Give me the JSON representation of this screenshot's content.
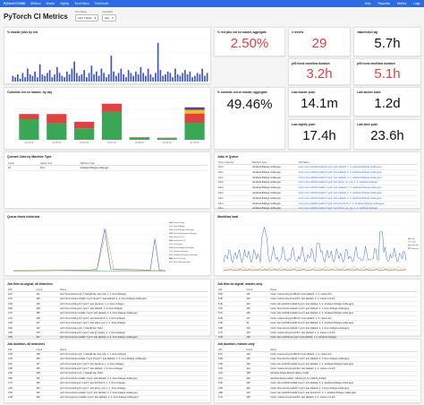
{
  "topbar": {
    "nav": [
      "PyTorch CI HUD",
      "Minihud",
      "Master",
      "Nightly",
      "TorchVision",
      "TorchAudio"
    ],
    "right": [
      "Help",
      "Requests",
      "Metrics",
      "Login"
    ]
  },
  "header": {
    "title": "PyTorch CI Metrics",
    "time_label": "Time Range",
    "time_value": "Last 7 Days",
    "granularity_label": "Granularity",
    "granularity_value": "day"
  },
  "stats": {
    "red_jobs": {
      "title": "% red jobs not on master, aggregate",
      "value": "2.50%"
    },
    "reverts": {
      "title": "# reverts",
      "value": "29"
    },
    "viable_strict_lag": {
      "title": "viable/strict lag",
      "value": "5.7h"
    },
    "p50_trunk": {
      "title": "p50 trunk workflow duration",
      "value": "3.2h"
    },
    "p90_trunk": {
      "title": "p90 trunk workflow duration",
      "value": "5.1h"
    },
    "commits_red": {
      "title": "% commits red on master, aggregate",
      "value": "49.46%"
    },
    "last_master_push": {
      "title": "Last master push",
      "value": "14.1m"
    },
    "last_docker_build": {
      "title": "Last docker build",
      "value": "1.2d"
    },
    "last_nightly_push": {
      "title": "Last nightly push",
      "value": "17.4h"
    },
    "last_docs_push": {
      "title": "Last docs push",
      "value": "23.6h"
    }
  },
  "charts": {
    "red_jobs_by_day": {
      "title": "% master jobs by red",
      "chart_data": {
        "type": "bar",
        "values": [
          4,
          3,
          5,
          2,
          6,
          3,
          9,
          5,
          4,
          7,
          3,
          12,
          5,
          4,
          6,
          8,
          3,
          5,
          10,
          6,
          4,
          3,
          7,
          5,
          9,
          14,
          6,
          4,
          5,
          8,
          3,
          6,
          11,
          5,
          7,
          4,
          9,
          6,
          3,
          5,
          18,
          7,
          4,
          6,
          9,
          5,
          3,
          8,
          6,
          4,
          7,
          5,
          10,
          6,
          4,
          9,
          5,
          3,
          6,
          27,
          8,
          4,
          5,
          7,
          6,
          3,
          9,
          5,
          4,
          6,
          8,
          5,
          7,
          3,
          4,
          6,
          5,
          9,
          4,
          6
        ]
      }
    },
    "commits_red": {
      "title": "Commits red on master, by day",
      "chart_data": {
        "type": "bar",
        "categories": [
          "01-24-23",
          "01-25-23",
          "01-26-23",
          "01-27-23",
          "01-28-23",
          "01-29-23",
          "01-30-23"
        ],
        "series": [
          {
            "name": "",
            "color": "#3aa757",
            "values": [
              40,
              32,
              22,
              54,
              4,
              3,
              33
            ]
          },
          {
            "name": "",
            "color": "#e04141",
            "values": [
              10,
              18,
              13,
              16,
              1,
              1,
              18
            ]
          },
          {
            "name": "",
            "color": "#f0c20a",
            "values": [
              0,
              0,
              0,
              0,
              0,
              0,
              7
            ]
          },
          {
            "name": "",
            "color": "#5b3fa8",
            "values": [
              0,
              0,
              0,
              0,
              0,
              0,
              5
            ]
          }
        ]
      }
    },
    "queue_history": {
      "title": "Queue times historical",
      "legend": [
        "linux.2xlarge",
        "linux.4xlarge",
        "linux.8xlarge.nvidia.gpu",
        "linux.g5.4xlarge.nvidia.gpu",
        "macos-12-xl",
        "macos-m1-12",
        "linux.large",
        "linux.4xlarge.nvidia.gpu",
        "windows.4xlarge",
        "windows.8xlarge.nvidia.gpu",
        "linux.12xlarge",
        "linux.24xl.spr-metal"
      ],
      "colors": [
        "#3b6fe0",
        "#e0a030",
        "#45b06b",
        "#e04141",
        "#8a63d2",
        "#8b5a2b",
        "#e377c2",
        "#7f7f7f",
        "#bcbd22",
        "#17becf",
        "#1f3f8f",
        "#ff8c00"
      ]
    },
    "workflow_load": {
      "title": "Workflow load",
      "legend": [
        "pull",
        "trunk",
        "periodic",
        "inductor"
      ],
      "colors": [
        "#3b6fe0",
        "#e0a030",
        "#45b06b",
        "#e04141"
      ]
    }
  },
  "queued_jobs": {
    "title": "Queued Jobs by Machine Type",
    "columns": [
      "Count",
      "Queue time",
      "Machine Type"
    ],
    "rows": [
      [
        "10",
        "0.1m",
        "windows.8xlarge.nvidia.gpu"
      ]
    ]
  },
  "jobs_in_queue": {
    "title": "Jobs in Queue",
    "columns": [
      "Time in Queue",
      "Machine Type",
      "Job Name"
    ],
    "rows": [
      [
        "0.1m",
        "windows.8xlarge.nvidia.gpu",
        "trunk / win-vs2019-cuda11.6-py3 / test (default, 1, 3, windows.8xlarge.nvidia.gpu)"
      ],
      [
        "0.1m",
        "windows.8xlarge.nvidia.gpu",
        "trunk / win-vs2019-cuda11.6-py3 / test (default, 2, 3, windows.8xlarge.nvidia.gpu)"
      ],
      [
        "0.1m",
        "windows.8xlarge.nvidia.gpu",
        "trunk / win-vs2019-cuda11.6-py3 / test (default, 3, 3, windows.8xlarge.nvidia.gpu)"
      ],
      [
        "0.1m",
        "windows.8xlarge.nvidia.gpu",
        "trunk / win-vs2019-cuda11.6-py3 / test (force_on_cpu, 1, 1, windows.4xlarge)"
      ],
      [
        "0.1m",
        "windows.8xlarge.nvidia.gpu",
        "trunk / win-vs2019-cuda11.7-py3 / test (default, 1, 3, windows.8xlarge.nvidia.gpu)"
      ],
      [
        "0.1m",
        "windows.8xlarge.nvidia.gpu",
        "trunk / win-vs2019-cuda11.7-py3 / test (default, 2, 3, windows.8xlarge.nvidia.gpu)"
      ],
      [
        "0.1m",
        "windows.8xlarge.nvidia.gpu",
        "trunk / win-vs2019-cuda11.7-py3 / test (default, 3, 3, windows.8xlarge.nvidia.gpu)"
      ],
      [
        "0.1m",
        "windows.8xlarge.nvidia.gpu",
        "trunk / win-vs2019-cuda11.7-py3 / test (functorch, 1, 1, windows.8xlarge.nvidia.gpu)"
      ],
      [
        "0.1m",
        "windows.8xlarge.nvidia.gpu",
        "trunk / win-vs2019-cuda11.7-py3 / test (force_on_cpu, 1, 1, windows.4xlarge)"
      ]
    ]
  },
  "tts_all": {
    "title": "Job time-to-signal, all branches",
    "columns": [
      "p50",
      "Count",
      "Name"
    ],
    "rows": [
      [
        "4.1h",
        "121",
        "pull / linux-bionic-py3_7-clang8-xla / test (xla, 1, 1, linux.4xlarge)"
      ],
      [
        "4.1h",
        "120",
        "pull / linux-bionic-cuda11.7-py3.10-gcc7 / test (default, 1, 4, linux.4xlarge.nvidia.gpu)"
      ],
      [
        "4.0h",
        "125",
        "pull / linux-focal-py3.7-gcc7 / test (dynamo, 1, 2, linux.2xlarge)"
      ],
      [
        "3.8h",
        "148",
        "pull / linux-focal-py3.7-gcc7 / test (default, 1, 2, linux.2xlarge)"
      ],
      [
        "3.7h",
        "165",
        "pull / linux-bionic-cuda11.7-py3 / test (default, 2, 4, linux.4xlarge.nvidia.gpu)"
      ],
      [
        "3.7h",
        "148",
        "pull / linux-focal-py3.7-gcc7 / test (functorch, 1, 1, linux.2xlarge)"
      ],
      [
        "3.6h",
        "107",
        "pull / linux-focal-py3.7-gcc7 / test (docs_test, 1, 1, linux.2xlarge)"
      ],
      [
        "3.6h",
        "110",
        "pull / linux-bionic-py3_7-clang8-xla / build"
      ],
      [
        "3.6h",
        "115",
        "pull / linux-focal-py3.7-gcc7 / test (jit_legacy, 1, 1, linux.2xlarge)"
      ],
      [
        "3.5h",
        "164",
        "pull / linux-bionic-cuda11.7-py3 / test (default, 4, 4, linux.4xlarge.nvidia.gpu)"
      ]
    ]
  },
  "tts_master": {
    "title": "Job time-to-signal, master-only",
    "columns": [
      "p50",
      "Count",
      "Name"
    ],
    "rows": [
      [
        "5.6h",
        "116",
        "trunk / macos-12-py3-x86-64 / test (default, 1, 3, macos-12)"
      ],
      [
        "5.4h",
        "132",
        "trunk / macos-12-py3-arm64 / test (default, 1, 2, macos-m1-12)"
      ],
      [
        "5.3h",
        "103",
        "trunk / win-vs2019-cuda11.6-py3 / test (default, 1, 2, windows.8xlarge.nvidia.gpu)"
      ],
      [
        "5.2h",
        "130",
        "trunk / linux-bionic-cuda11.7-py3 / test (default, 1, 4, linux.4xlarge.nvidia.gpu)"
      ],
      [
        "5.1h",
        "116",
        "trunk / win-vs2019-cuda11.6-py3 / test (default, 2, 3, windows.8xlarge.nvidia.gpu)"
      ],
      [
        "5.0h",
        "117",
        "trunk / macos-12-py3-x86-64 / test (default, 2, 3, macos-12)"
      ],
      [
        "4.9h",
        "92",
        "trunk / win-vs2019-cuda11.6-py3 / test (default, 3, 3, windows.8xlarge.nvidia.gpu)"
      ],
      [
        "4.8h",
        "104",
        "trunk / linux-bionic-cuda11.7-py3 / test (default, 2, 4, linux.4xlarge.nvidia.gpu)"
      ],
      [
        "4.7h",
        "143",
        "trunk / macos-12-py3-arm64 / test (default, 2, 2, macos-m1-12)"
      ],
      [
        "4.6h",
        "118",
        "trunk / win-vs2019-cpu-py3 / test (default, 1, 2, windows.4xlarge)"
      ]
    ]
  },
  "dur_all": {
    "title": "Job duration, all branches",
    "columns": [
      "p50",
      "Count",
      "Name"
    ],
    "rows": [
      [
        "3.4h",
        "128",
        "pull / linux-bionic-py3_7-clang8-xla / test (xla, 1, 1, linux.4xlarge)"
      ],
      [
        "3.2h",
        "150",
        "pull / linux-bionic-cuda11.7-py3.10-gcc7 / test (default, 1, 4, linux.4xlarge.nvidia.gpu)"
      ],
      [
        "3.1h",
        "147",
        "pull / linux-focal-py3.7-gcc7 / test (dynamo, 1, 2, linux.2xlarge)"
      ],
      [
        "3.0h",
        "155",
        "pull / linux-focal-py3.7-gcc7 / test (default, 1, 2, linux.2xlarge)"
      ],
      [
        "2.9h",
        "108",
        "pull / linux-bionic-py3_7-clang8-xla / build"
      ],
      [
        "2.8h",
        "145",
        "pull / linux-bionic-cuda11.7-py3 / test (default, 2, 4, linux.4xlarge.nvidia.gpu)"
      ],
      [
        "2.7h",
        "156",
        "pull / linux-focal-py3.7-gcc7 / test (functorch, 1, 1, linux.2xlarge)"
      ],
      [
        "2.6h",
        "154",
        "pull / linux-focal-py3.7-gcc7 / test (docs_test, 1, 1, linux.2xlarge)"
      ],
      [
        "2.5h",
        "152",
        "pull / linux-bionic-cuda11.7-py3 / test (default, 4, 4, linux.4xlarge.nvidia.gpu)"
      ],
      [
        "2.4h",
        "150",
        "pull / linux-jammy-cuda11.7-py3 / test (default, 1, 2, linux.4xlarge.nvidia.gpu)"
      ]
    ]
  },
  "dur_master": {
    "title": "Job duration, master-only",
    "columns": [
      "p50",
      "Count",
      "Name"
    ],
    "rows": [
      [
        "5.1h",
        "120",
        "trunk / macos-12-py3-x86-64 / test (default, 1, 3, macos-12)"
      ],
      [
        "4.8h",
        "118",
        "trunk / linux-bionic-cuda11.7-py3 / test (default, 1, 4, linux.4xlarge.nvidia.gpu)"
      ],
      [
        "4.5h",
        "106",
        "trunk / win-vs2019-cuda11.6-py3 / test (default, 1, 3, windows.8xlarge.nvidia.gpu)"
      ],
      [
        "4.4h",
        "104",
        "trunk / macos-12-py3-arm64 / test (default, 1, 2, macos-m1-12)"
      ],
      [
        "4.2h",
        "128",
        "windows-binary-libtorch-debug / build"
      ],
      [
        "4.1h",
        "120",
        "windows-binary-wheel / wheel-py3_11-cuda11_8-build"
      ],
      [
        "4.0h",
        "118",
        "trunk / win-vs2019-cuda11.6-py3 / test (default, 2, 3, windows.8xlarge.nvidia.gpu)"
      ],
      [
        "3.9h",
        "102",
        "trunk / linux-bionic-cuda11.7-py3 / test (default, 2, 4, linux.4xlarge.nvidia.gpu)"
      ],
      [
        "3.8h",
        "113",
        "trunk / win-vs2019-cuda11.6-py3 / test (functorch, 1, 1, windows.8xlarge.nvidia.gpu)"
      ],
      [
        "3.7h",
        "128",
        "trunk / macos-12-py3-arm64 / test (default, 2, 2, macos-m1-12)"
      ]
    ]
  }
}
